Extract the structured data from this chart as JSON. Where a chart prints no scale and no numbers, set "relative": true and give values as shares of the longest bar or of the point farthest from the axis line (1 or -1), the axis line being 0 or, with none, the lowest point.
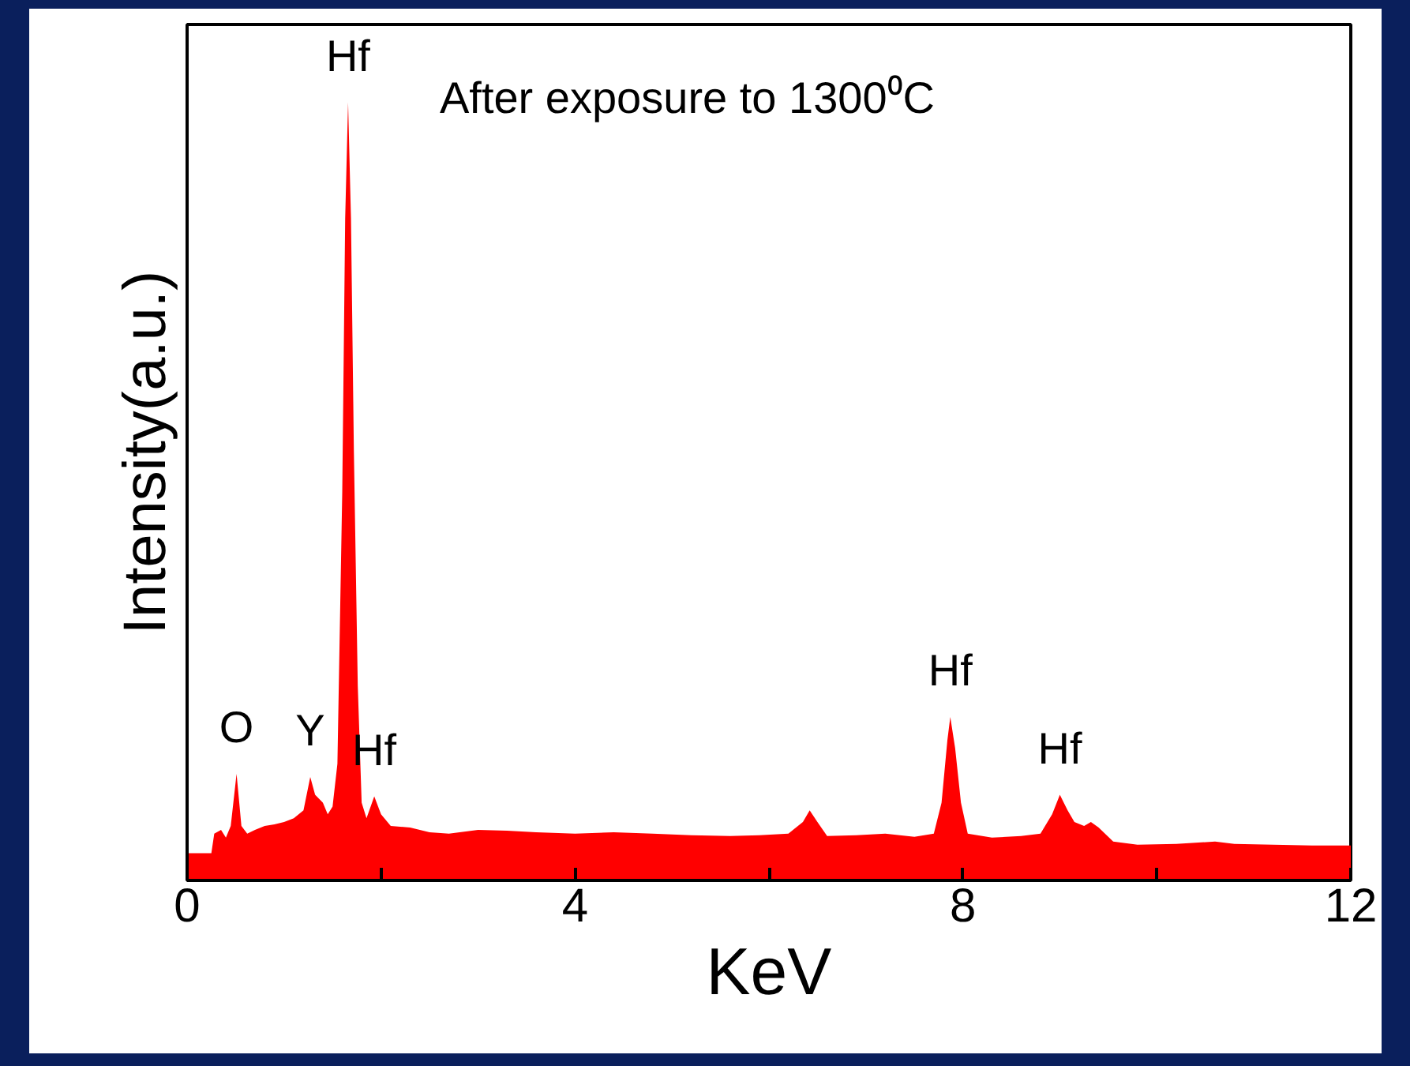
{
  "chart_data": {
    "type": "area",
    "relative": true,
    "xlabel": "KeV",
    "ylabel": "Intensity(a.u.)",
    "color": "#ff0000",
    "xlim": [
      0,
      12
    ],
    "xticks": [
      0,
      {
        "value": 2,
        "label": null
      },
      4,
      {
        "value": 6,
        "label": null
      },
      8,
      {
        "value": 10,
        "label": null
      },
      12
    ],
    "x": [
      0,
      0.25,
      0.28,
      0.35,
      0.4,
      0.45,
      0.51,
      0.56,
      0.62,
      0.7,
      0.8,
      0.9,
      1.0,
      1.1,
      1.2,
      1.27,
      1.32,
      1.4,
      1.45,
      1.5,
      1.55,
      1.6,
      1.63,
      1.66,
      1.69,
      1.72,
      1.76,
      1.8,
      1.85,
      1.93,
      2.0,
      2.1,
      2.3,
      2.5,
      2.7,
      3.0,
      3.3,
      3.6,
      4.0,
      4.4,
      4.8,
      5.2,
      5.6,
      5.9,
      6.2,
      6.35,
      6.42,
      6.5,
      6.6,
      6.9,
      7.2,
      7.5,
      7.7,
      7.78,
      7.84,
      7.87,
      7.92,
      7.98,
      8.05,
      8.3,
      8.6,
      8.8,
      8.92,
      9.0,
      9.08,
      9.15,
      9.25,
      9.32,
      9.4,
      9.55,
      9.8,
      10.2,
      10.6,
      10.8,
      11.2,
      11.6,
      12.0
    ],
    "values": [
      0.035,
      0.035,
      0.06,
      0.065,
      0.055,
      0.07,
      0.137,
      0.07,
      0.06,
      0.065,
      0.07,
      0.072,
      0.075,
      0.08,
      0.09,
      0.133,
      0.11,
      0.1,
      0.085,
      0.095,
      0.15,
      0.5,
      0.85,
      1.0,
      0.85,
      0.55,
      0.25,
      0.1,
      0.08,
      0.108,
      0.085,
      0.07,
      0.068,
      0.062,
      0.06,
      0.065,
      0.064,
      0.062,
      0.06,
      0.062,
      0.06,
      0.058,
      0.057,
      0.058,
      0.06,
      0.075,
      0.09,
      0.075,
      0.057,
      0.058,
      0.06,
      0.056,
      0.06,
      0.1,
      0.18,
      0.21,
      0.17,
      0.1,
      0.06,
      0.055,
      0.057,
      0.06,
      0.085,
      0.11,
      0.09,
      0.075,
      0.07,
      0.075,
      0.068,
      0.05,
      0.046,
      0.047,
      0.05,
      0.047,
      0.046,
      0.045,
      0.045
    ],
    "annotations": [
      "After exposure to 1300⁰C",
      {
        "text": "O",
        "x": 0.51,
        "y": 0.137
      },
      {
        "text": "Y",
        "x": 1.27,
        "y": 0.133
      },
      {
        "text": "Hf",
        "x": 1.66,
        "y": 1.0
      },
      {
        "text": "Hf",
        "x": 1.93,
        "y": 0.108
      },
      {
        "text": "Hf",
        "x": 7.87,
        "y": 0.21
      },
      {
        "text": "Hf",
        "x": 9.0,
        "y": 0.11
      }
    ],
    "grid": false
  }
}
